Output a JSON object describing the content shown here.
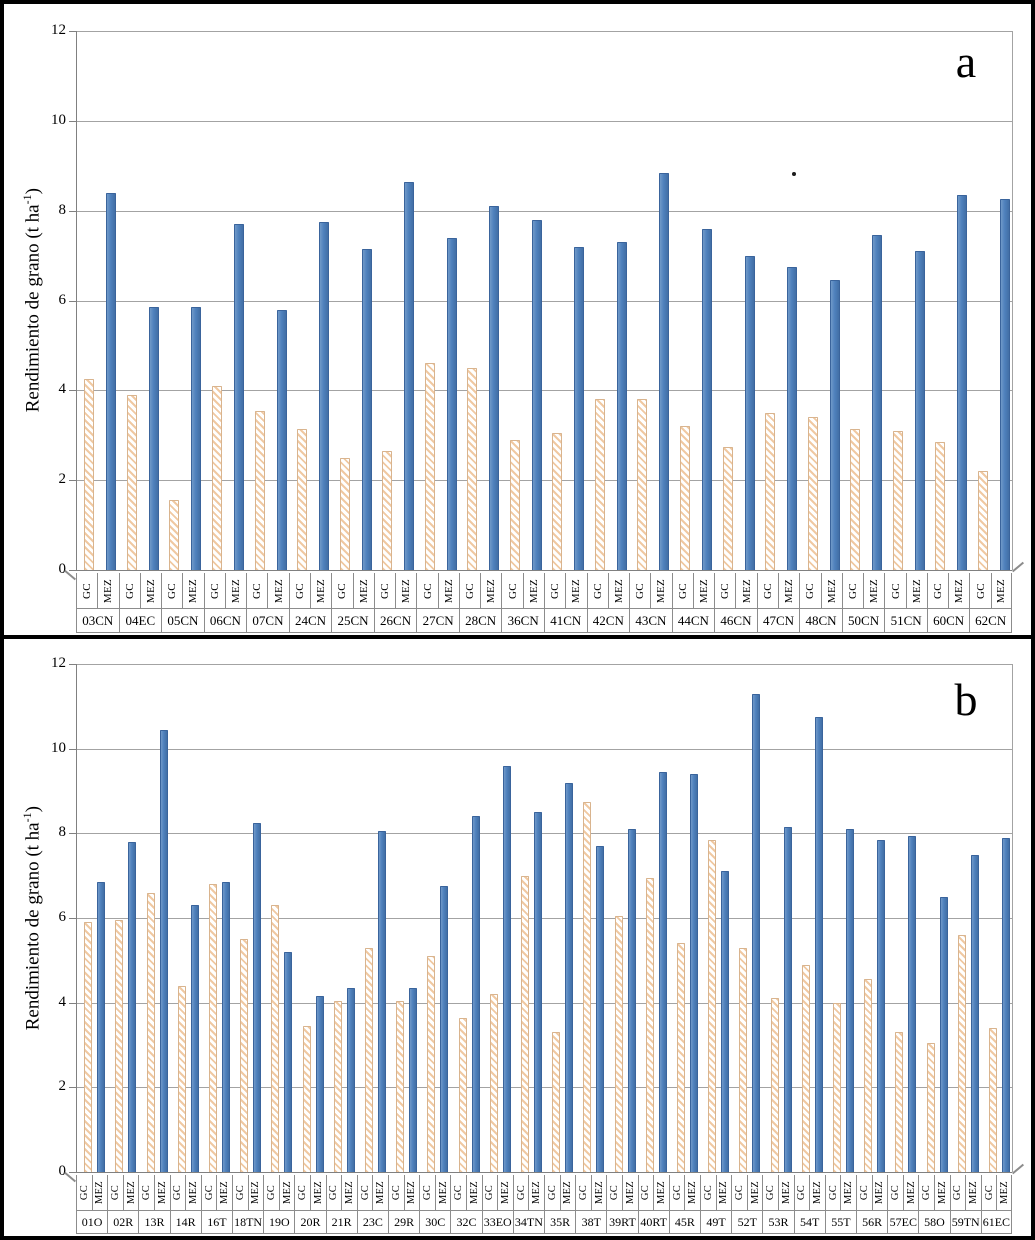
{
  "figure": {
    "panel_letters": [
      "a",
      "b"
    ]
  },
  "colors": {
    "mez_bar": "#4f81bd",
    "mez_bar_border": "#3a649c",
    "gc_hatch_stripe": "#f0c9a2",
    "gc_bar_border": "#d9b48e",
    "gridline": "#a3a3a3",
    "axis": "#808080",
    "label_grid": "#8c8c8c",
    "text": "#000000"
  },
  "chart_data": [
    {
      "type": "bar",
      "panel_label": "a",
      "title": "",
      "ylabel_main": "Rendimiento de grano (t ha",
      "ylabel_sup": "-1",
      "ylabel_close": ")",
      "xlabel": "",
      "ylim": [
        0,
        12
      ],
      "yticks": [
        0,
        2,
        4,
        6,
        8,
        10,
        12
      ],
      "grid": true,
      "legend_position": "none",
      "categories": [
        "03CN",
        "04EC",
        "05CN",
        "06CN",
        "07CN",
        "24CN",
        "25CN",
        "26CN",
        "27CN",
        "28CN",
        "36CN",
        "41CN",
        "42CN",
        "43CN",
        "44CN",
        "46CN",
        "47CN",
        "48CN",
        "50CN",
        "51CN",
        "60CN",
        "62CN"
      ],
      "series": [
        {
          "name": "GC",
          "values": [
            4.25,
            3.9,
            1.55,
            4.1,
            3.55,
            3.15,
            2.5,
            2.65,
            4.6,
            4.5,
            2.9,
            3.05,
            3.8,
            3.8,
            3.2,
            2.75,
            3.5,
            3.4,
            3.15,
            3.1,
            2.85,
            2.2
          ]
        },
        {
          "name": "MEZ",
          "values": [
            8.4,
            5.85,
            5.85,
            7.7,
            5.8,
            7.75,
            7.15,
            8.65,
            7.4,
            8.1,
            7.8,
            7.2,
            7.3,
            8.85,
            7.6,
            7.0,
            6.75,
            6.45,
            7.45,
            7.1,
            8.35,
            8.25
          ]
        }
      ]
    },
    {
      "type": "bar",
      "panel_label": "b",
      "title": "",
      "ylabel_main": "Rendimiento de grano (t ha",
      "ylabel_sup": "-1",
      "ylabel_close": ")",
      "xlabel": "",
      "ylim": [
        0,
        12
      ],
      "yticks": [
        0,
        2,
        4,
        6,
        8,
        10,
        12
      ],
      "grid": true,
      "legend_position": "none",
      "categories": [
        "01O",
        "02R",
        "13R",
        "14R",
        "16T",
        "18TN",
        "19O",
        "20R",
        "21R",
        "23C",
        "29R",
        "30C",
        "32C",
        "33EO",
        "34TN",
        "35R",
        "38T",
        "39RT",
        "40RT",
        "45R",
        "49T",
        "52T",
        "53R",
        "54T",
        "55T",
        "56R",
        "57EC",
        "58O",
        "59TN",
        "61EC"
      ],
      "series": [
        {
          "name": "GC",
          "values": [
            5.9,
            5.95,
            6.6,
            4.4,
            6.8,
            5.5,
            6.3,
            3.45,
            4.05,
            5.3,
            4.05,
            5.1,
            3.65,
            4.2,
            7.0,
            3.3,
            8.75,
            6.05,
            6.95,
            5.4,
            7.85,
            5.3,
            4.1,
            4.9,
            4.0,
            4.55,
            3.3,
            3.05,
            5.6,
            3.4
          ]
        },
        {
          "name": "MEZ",
          "values": [
            6.85,
            7.8,
            10.45,
            6.3,
            6.85,
            8.25,
            5.2,
            4.15,
            4.35,
            8.05,
            4.35,
            6.75,
            8.4,
            9.6,
            8.5,
            9.2,
            7.7,
            8.1,
            9.45,
            9.4,
            7.1,
            11.3,
            8.15,
            10.75,
            8.1,
            7.85,
            7.95,
            6.5,
            7.5,
            7.9
          ]
        }
      ]
    }
  ]
}
